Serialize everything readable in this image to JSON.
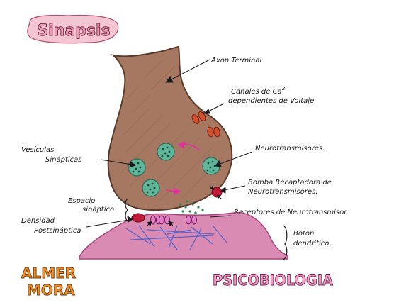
{
  "title": "Sinapsis",
  "labels": {
    "axon_terminal": "Axon Terminal",
    "ca_channels_line1": "Canales de Ca",
    "ca_superscript": "2",
    "ca_channels_line2": "dependientes de Voltaje",
    "vesiculas_line1": "Vesículas",
    "vesiculas_line2": "Sinápticas",
    "neurotransmisores": "Neurotransmisores.",
    "bomba_line1": "Bomba Recaptadora de",
    "bomba_line2": "Neurotransmisores.",
    "espacio_line1": "Espacio",
    "espacio_line2": "sináptico",
    "densidad_line1": "Densidad",
    "densidad_line2": "Postsináptica",
    "receptores": "Receptores de Neurotransmisor",
    "boton_line1": "Boton",
    "boton_line2": "dendrítico."
  },
  "author": {
    "line1": "ALMER",
    "line2": "MORA"
  },
  "subject": "PSICOBIOLOGIA",
  "colors": {
    "terminal_fill": "#a67862",
    "terminal_stroke": "#5a3a2a",
    "vesicle_fill": "#5fb59a",
    "vesicle_dot": "#1d4a3c",
    "dendrite_fill": "#d98bb4",
    "dendrite_stroke": "#a8447a",
    "channel_fill": "#d2502e",
    "receptor_fill": "#e07fc6",
    "density_fill": "#c01a3a",
    "dendrite_lines": "#5a62c8",
    "arrow_pink": "#e0309a",
    "nt_dots": "#2f8a4c",
    "title_fill": "#e8a0b8",
    "author_fill": "#e8902e",
    "subject_fill": "#f0a0c4"
  }
}
